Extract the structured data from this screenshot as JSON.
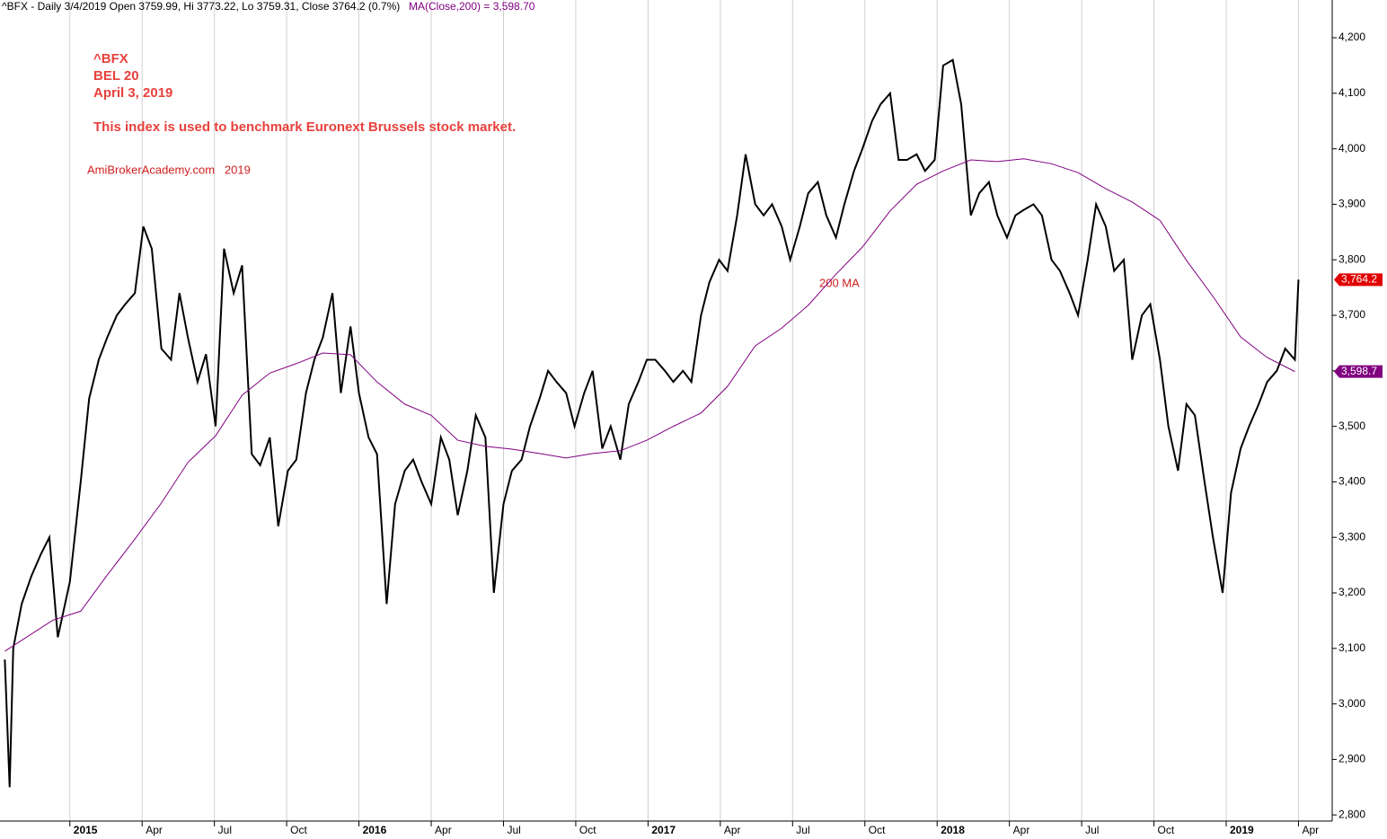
{
  "chart_data": {
    "type": "line",
    "header": "^BFX - Daily 3/4/2019 Open 3759.99, Hi 3773.22, Lo 3759.31, Close 3764.2 (0.7%)",
    "ma_header": "MA(Close,200) = 3,598.70",
    "annotations": [
      "^BFX",
      "BEL 20",
      "April 3, 2019",
      "This index is used to benchmark Euronext Brussels stock market.",
      "AmiBrokerAcademy.com   2019",
      "200 MA"
    ],
    "xlim": [
      -2.9,
      52.4
    ],
    "ylim": [
      2789,
      4268
    ],
    "xticks": [
      {
        "value": 0,
        "label": "2015"
      },
      {
        "value": 3,
        "label": "Apr"
      },
      {
        "value": 6,
        "label": "Jul"
      },
      {
        "value": 9,
        "label": "Oct"
      },
      {
        "value": 12,
        "label": "2016"
      },
      {
        "value": 15,
        "label": "Apr"
      },
      {
        "value": 18,
        "label": "Jul"
      },
      {
        "value": 21,
        "label": "Oct"
      },
      {
        "value": 24,
        "label": "2017"
      },
      {
        "value": 27,
        "label": "Apr"
      },
      {
        "value": 30,
        "label": "Jul"
      },
      {
        "value": 33,
        "label": "Oct"
      },
      {
        "value": 36,
        "label": "2018"
      },
      {
        "value": 39,
        "label": "Apr"
      },
      {
        "value": 42,
        "label": "Jul"
      },
      {
        "value": 45,
        "label": "Oct"
      },
      {
        "value": 48,
        "label": "2019"
      },
      {
        "value": 51,
        "label": "Apr"
      }
    ],
    "yticks": [
      {
        "value": 2800,
        "label": "2,800"
      },
      {
        "value": 2900,
        "label": "2,900"
      },
      {
        "value": 3000,
        "label": "3,000"
      },
      {
        "value": 3100,
        "label": "3,100"
      },
      {
        "value": 3200,
        "label": "3,200"
      },
      {
        "value": 3300,
        "label": "3,300"
      },
      {
        "value": 3400,
        "label": "3,400"
      },
      {
        "value": 3500,
        "label": "3,500"
      },
      {
        "value": 3600,
        "label": "3,600"
      },
      {
        "value": 3700,
        "label": "3,700"
      },
      {
        "value": 3800,
        "label": "3,800"
      },
      {
        "value": 3900,
        "label": "3,900"
      },
      {
        "value": 4000,
        "label": "4,000"
      },
      {
        "value": 4100,
        "label": "4,100"
      },
      {
        "value": 4200,
        "label": "4,200"
      }
    ],
    "grid": true,
    "series": [
      {
        "color": "#000000",
        "last_label": "3,764.2",
        "x": [
          -2.7,
          -2.5,
          -2.35,
          -2,
          -1.6,
          -1.2,
          -0.85,
          -0.5,
          0,
          0.45,
          0.8,
          1.2,
          1.55,
          1.95,
          2.3,
          2.7,
          3.05,
          3.4,
          3.8,
          4.2,
          4.55,
          4.9,
          5.3,
          5.65,
          6.05,
          6.4,
          6.8,
          7.15,
          7.55,
          7.9,
          8.3,
          8.65,
          9.05,
          9.4,
          9.8,
          10.15,
          10.5,
          10.9,
          11.25,
          11.65,
          12,
          12.4,
          12.75,
          13.15,
          13.5,
          13.9,
          14.25,
          14.6,
          15,
          15.4,
          15.75,
          16.1,
          16.5,
          16.85,
          17.25,
          17.6,
          18,
          18.35,
          18.75,
          19.1,
          19.5,
          19.85,
          20.2,
          20.6,
          20.95,
          21.35,
          21.7,
          22.1,
          22.45,
          22.85,
          23.2,
          23.6,
          23.95,
          24.3,
          24.7,
          25.05,
          25.45,
          25.8,
          26.2,
          26.55,
          26.95,
          27.3,
          27.7,
          28.05,
          28.45,
          28.8,
          29.15,
          29.55,
          29.9,
          30.3,
          30.65,
          31.05,
          31.4,
          31.8,
          32.15,
          32.55,
          32.9,
          33.3,
          33.65,
          34.05,
          34.4,
          34.75,
          35.15,
          35.5,
          35.9,
          36.25,
          36.65,
          37,
          37.4,
          37.75,
          38.15,
          38.5,
          38.9,
          39.25,
          39.6,
          40,
          40.35,
          40.75,
          41.1,
          41.5,
          41.85,
          42.25,
          42.6,
          43,
          43.35,
          43.75,
          44.1,
          44.5,
          44.85,
          45.25,
          45.6,
          46,
          46.35,
          46.7,
          47.1,
          47.45,
          47.85,
          48.2,
          48.6,
          48.95,
          49.35,
          49.7,
          50.1,
          50.45,
          50.85,
          51
        ],
        "values": [
          3080,
          2850,
          3100,
          3180,
          3230,
          3270,
          3300,
          3120,
          3220,
          3400,
          3550,
          3620,
          3660,
          3700,
          3720,
          3740,
          3860,
          3820,
          3640,
          3620,
          3740,
          3660,
          3580,
          3630,
          3500,
          3820,
          3740,
          3790,
          3450,
          3430,
          3480,
          3320,
          3420,
          3440,
          3560,
          3620,
          3660,
          3740,
          3560,
          3680,
          3560,
          3480,
          3450,
          3180,
          3360,
          3420,
          3440,
          3400,
          3360,
          3480,
          3440,
          3340,
          3420,
          3520,
          3480,
          3200,
          3360,
          3420,
          3440,
          3500,
          3550,
          3600,
          3580,
          3560,
          3500,
          3560,
          3600,
          3460,
          3500,
          3440,
          3540,
          3580,
          3620,
          3620,
          3600,
          3580,
          3600,
          3580,
          3700,
          3760,
          3800,
          3780,
          3880,
          3990,
          3900,
          3880,
          3900,
          3860,
          3800,
          3860,
          3920,
          3940,
          3880,
          3840,
          3900,
          3960,
          4000,
          4050,
          4080,
          4100,
          3980,
          3980,
          3990,
          3960,
          3980,
          4150,
          4160,
          4080,
          3880,
          3920,
          3940,
          3880,
          3840,
          3880,
          3890,
          3900,
          3880,
          3800,
          3780,
          3740,
          3700,
          3800,
          3900,
          3860,
          3780,
          3800,
          3620,
          3700,
          3720,
          3620,
          3500,
          3420,
          3540,
          3520,
          3400,
          3300,
          3200,
          3380,
          3460,
          3500,
          3540,
          3580,
          3600,
          3640,
          3620,
          3764.2
        ]
      },
      {
        "color": "#800080",
        "last_label": "3,598.7",
        "x": [
          -2.7,
          -0.7,
          0.45,
          1.55,
          2.7,
          3.8,
          4.9,
          6.05,
          7.15,
          8.3,
          9.4,
          10.5,
          11.65,
          12.75,
          13.9,
          15,
          16.1,
          17.25,
          18.35,
          19.5,
          20.6,
          21.7,
          22.85,
          23.95,
          25.05,
          26.2,
          27.3,
          28.45,
          29.55,
          30.65,
          31.8,
          32.9,
          34.05,
          35.15,
          36.25,
          37.4,
          38.5,
          39.6,
          40.75,
          41.85,
          43,
          44.1,
          45.25,
          46.35,
          47.45,
          48.6,
          49.7,
          50.85
        ],
        "values": [
          3095,
          3151,
          3167,
          3232,
          3297,
          3362,
          3435,
          3483,
          3556,
          3596,
          3613,
          3632,
          3629,
          3580,
          3540,
          3520,
          3475,
          3464,
          3459,
          3451,
          3443,
          3451,
          3456,
          3475,
          3500,
          3524,
          3572,
          3645,
          3677,
          3718,
          3774,
          3823,
          3888,
          3936,
          3960,
          3980,
          3977,
          3982,
          3973,
          3957,
          3928,
          3904,
          3871,
          3799,
          3734,
          3661,
          3624,
          3598.7
        ]
      }
    ]
  }
}
